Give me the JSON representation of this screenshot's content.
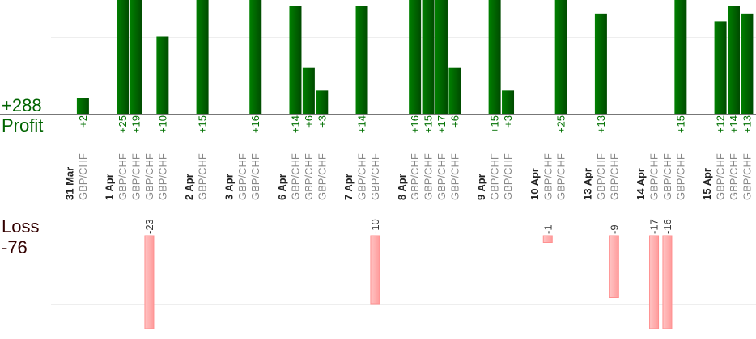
{
  "chart_data": {
    "type": "bar",
    "summary": {
      "profit_total": "+288",
      "profit_label": "Profit",
      "loss_label": "Loss",
      "loss_total": "-76"
    },
    "colors": {
      "profit_bar": "#006400",
      "loss_bar": "#ffb0b0",
      "profit_text": "#007000",
      "loss_text": "#330000"
    },
    "profit_gridline": 10,
    "loss_gridline": -10,
    "groups": [
      {
        "date": "31 Mar",
        "trades": [
          {
            "pair": "GBP/CHF",
            "value": 2
          }
        ]
      },
      {
        "date": "1 Apr",
        "trades": [
          {
            "pair": "GBP/CHF",
            "value": 25
          },
          {
            "pair": "GBP/CHF",
            "value": 19
          },
          {
            "pair": "GBP/CHF",
            "value": -23
          },
          {
            "pair": "GBP/CHF",
            "value": 10
          }
        ]
      },
      {
        "date": "2 Apr",
        "trades": [
          {
            "pair": "GBP/CHF",
            "value": 15
          }
        ]
      },
      {
        "date": "3 Apr",
        "trades": [
          {
            "pair": "GBP/CHF",
            "value": 0
          },
          {
            "pair": "GBP/CHF",
            "value": 16
          }
        ]
      },
      {
        "date": "6 Apr",
        "trades": [
          {
            "pair": "GBP/CHF",
            "value": 14
          },
          {
            "pair": "GBP/CHF",
            "value": 6
          },
          {
            "pair": "GBP/CHF",
            "value": 3
          }
        ]
      },
      {
        "date": "7 Apr",
        "trades": [
          {
            "pair": "GBP/CHF",
            "value": 14
          },
          {
            "pair": "GBP/CHF",
            "value": -10
          }
        ]
      },
      {
        "date": "8 Apr",
        "trades": [
          {
            "pair": "GBP/CHF",
            "value": 16
          },
          {
            "pair": "GBP/CHF",
            "value": 15
          },
          {
            "pair": "GBP/CHF",
            "value": 17
          },
          {
            "pair": "GBP/CHF",
            "value": 6
          }
        ]
      },
      {
        "date": "9 Apr",
        "trades": [
          {
            "pair": "GBP/CHF",
            "value": 15
          },
          {
            "pair": "GBP/CHF",
            "value": 3
          }
        ]
      },
      {
        "date": "10 Apr",
        "trades": [
          {
            "pair": "GBP/CHF",
            "value": -1
          },
          {
            "pair": "GBP/CHF",
            "value": 25
          }
        ]
      },
      {
        "date": "13 Apr",
        "trades": [
          {
            "pair": "GBP/CHF",
            "value": 13
          },
          {
            "pair": "GBP/CHF",
            "value": -9
          }
        ]
      },
      {
        "date": "14 Apr",
        "trades": [
          {
            "pair": "GBP/CHF",
            "value": -17
          },
          {
            "pair": "GBP/CHF",
            "value": -16
          },
          {
            "pair": "GBP/CHF",
            "value": 15
          }
        ]
      },
      {
        "date": "15 Apr",
        "trades": [
          {
            "pair": "GBP/CHF",
            "value": 12
          },
          {
            "pair": "GBP/CHF",
            "value": 14
          },
          {
            "pair": "GBP/CHF",
            "value": 13
          }
        ]
      }
    ]
  }
}
